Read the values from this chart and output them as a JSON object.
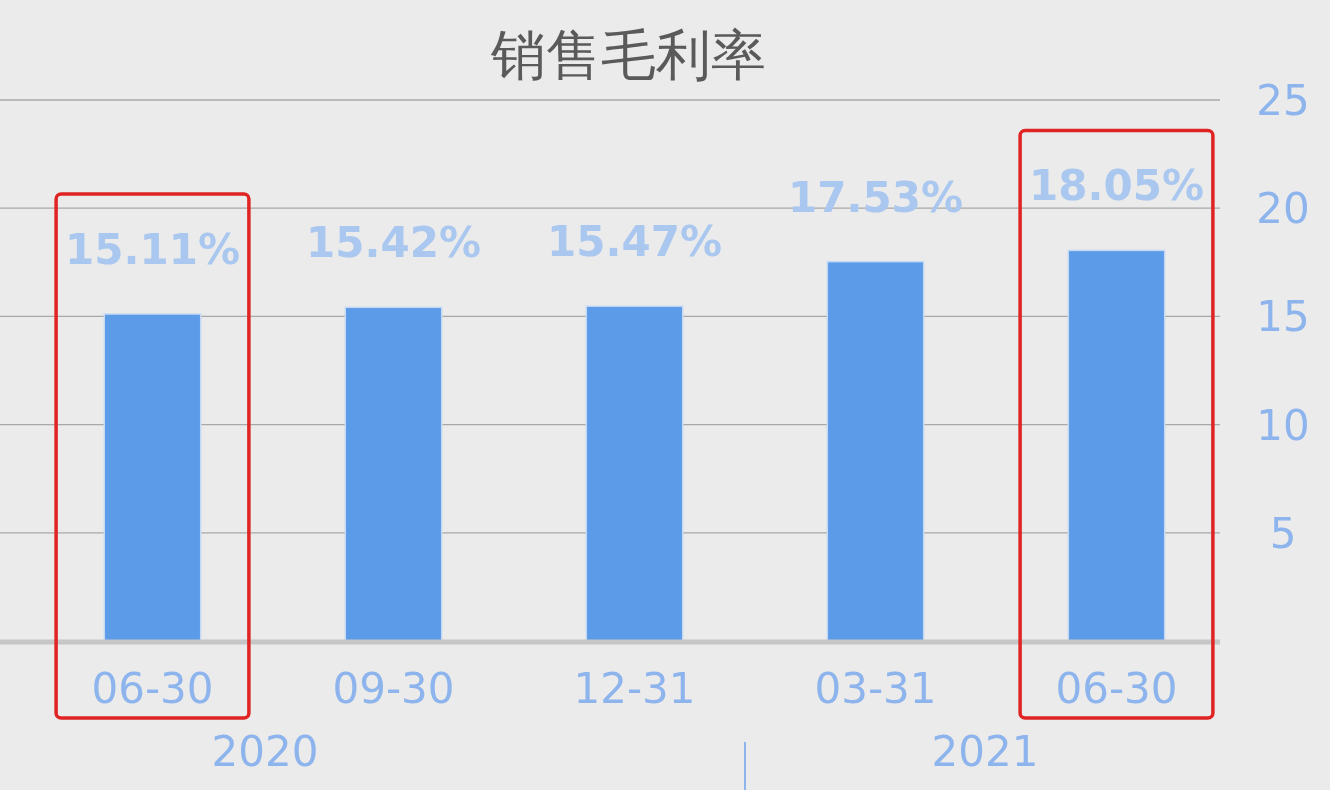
{
  "chart_data": {
    "type": "bar",
    "title": "销售毛利率",
    "categories": [
      "06-30",
      "09-30",
      "12-31",
      "03-31",
      "06-30"
    ],
    "values": [
      15.11,
      15.42,
      15.47,
      17.53,
      18.05
    ],
    "color": "#5b9be8",
    "value_labels": [
      "15.11%",
      "15.42%",
      "15.47%",
      "17.53%",
      "18.05%"
    ],
    "ylim": [
      0,
      25
    ],
    "yticks": [
      5,
      10,
      15,
      20,
      25
    ],
    "grid": "y",
    "annotations": [
      "2020",
      "2021"
    ]
  }
}
